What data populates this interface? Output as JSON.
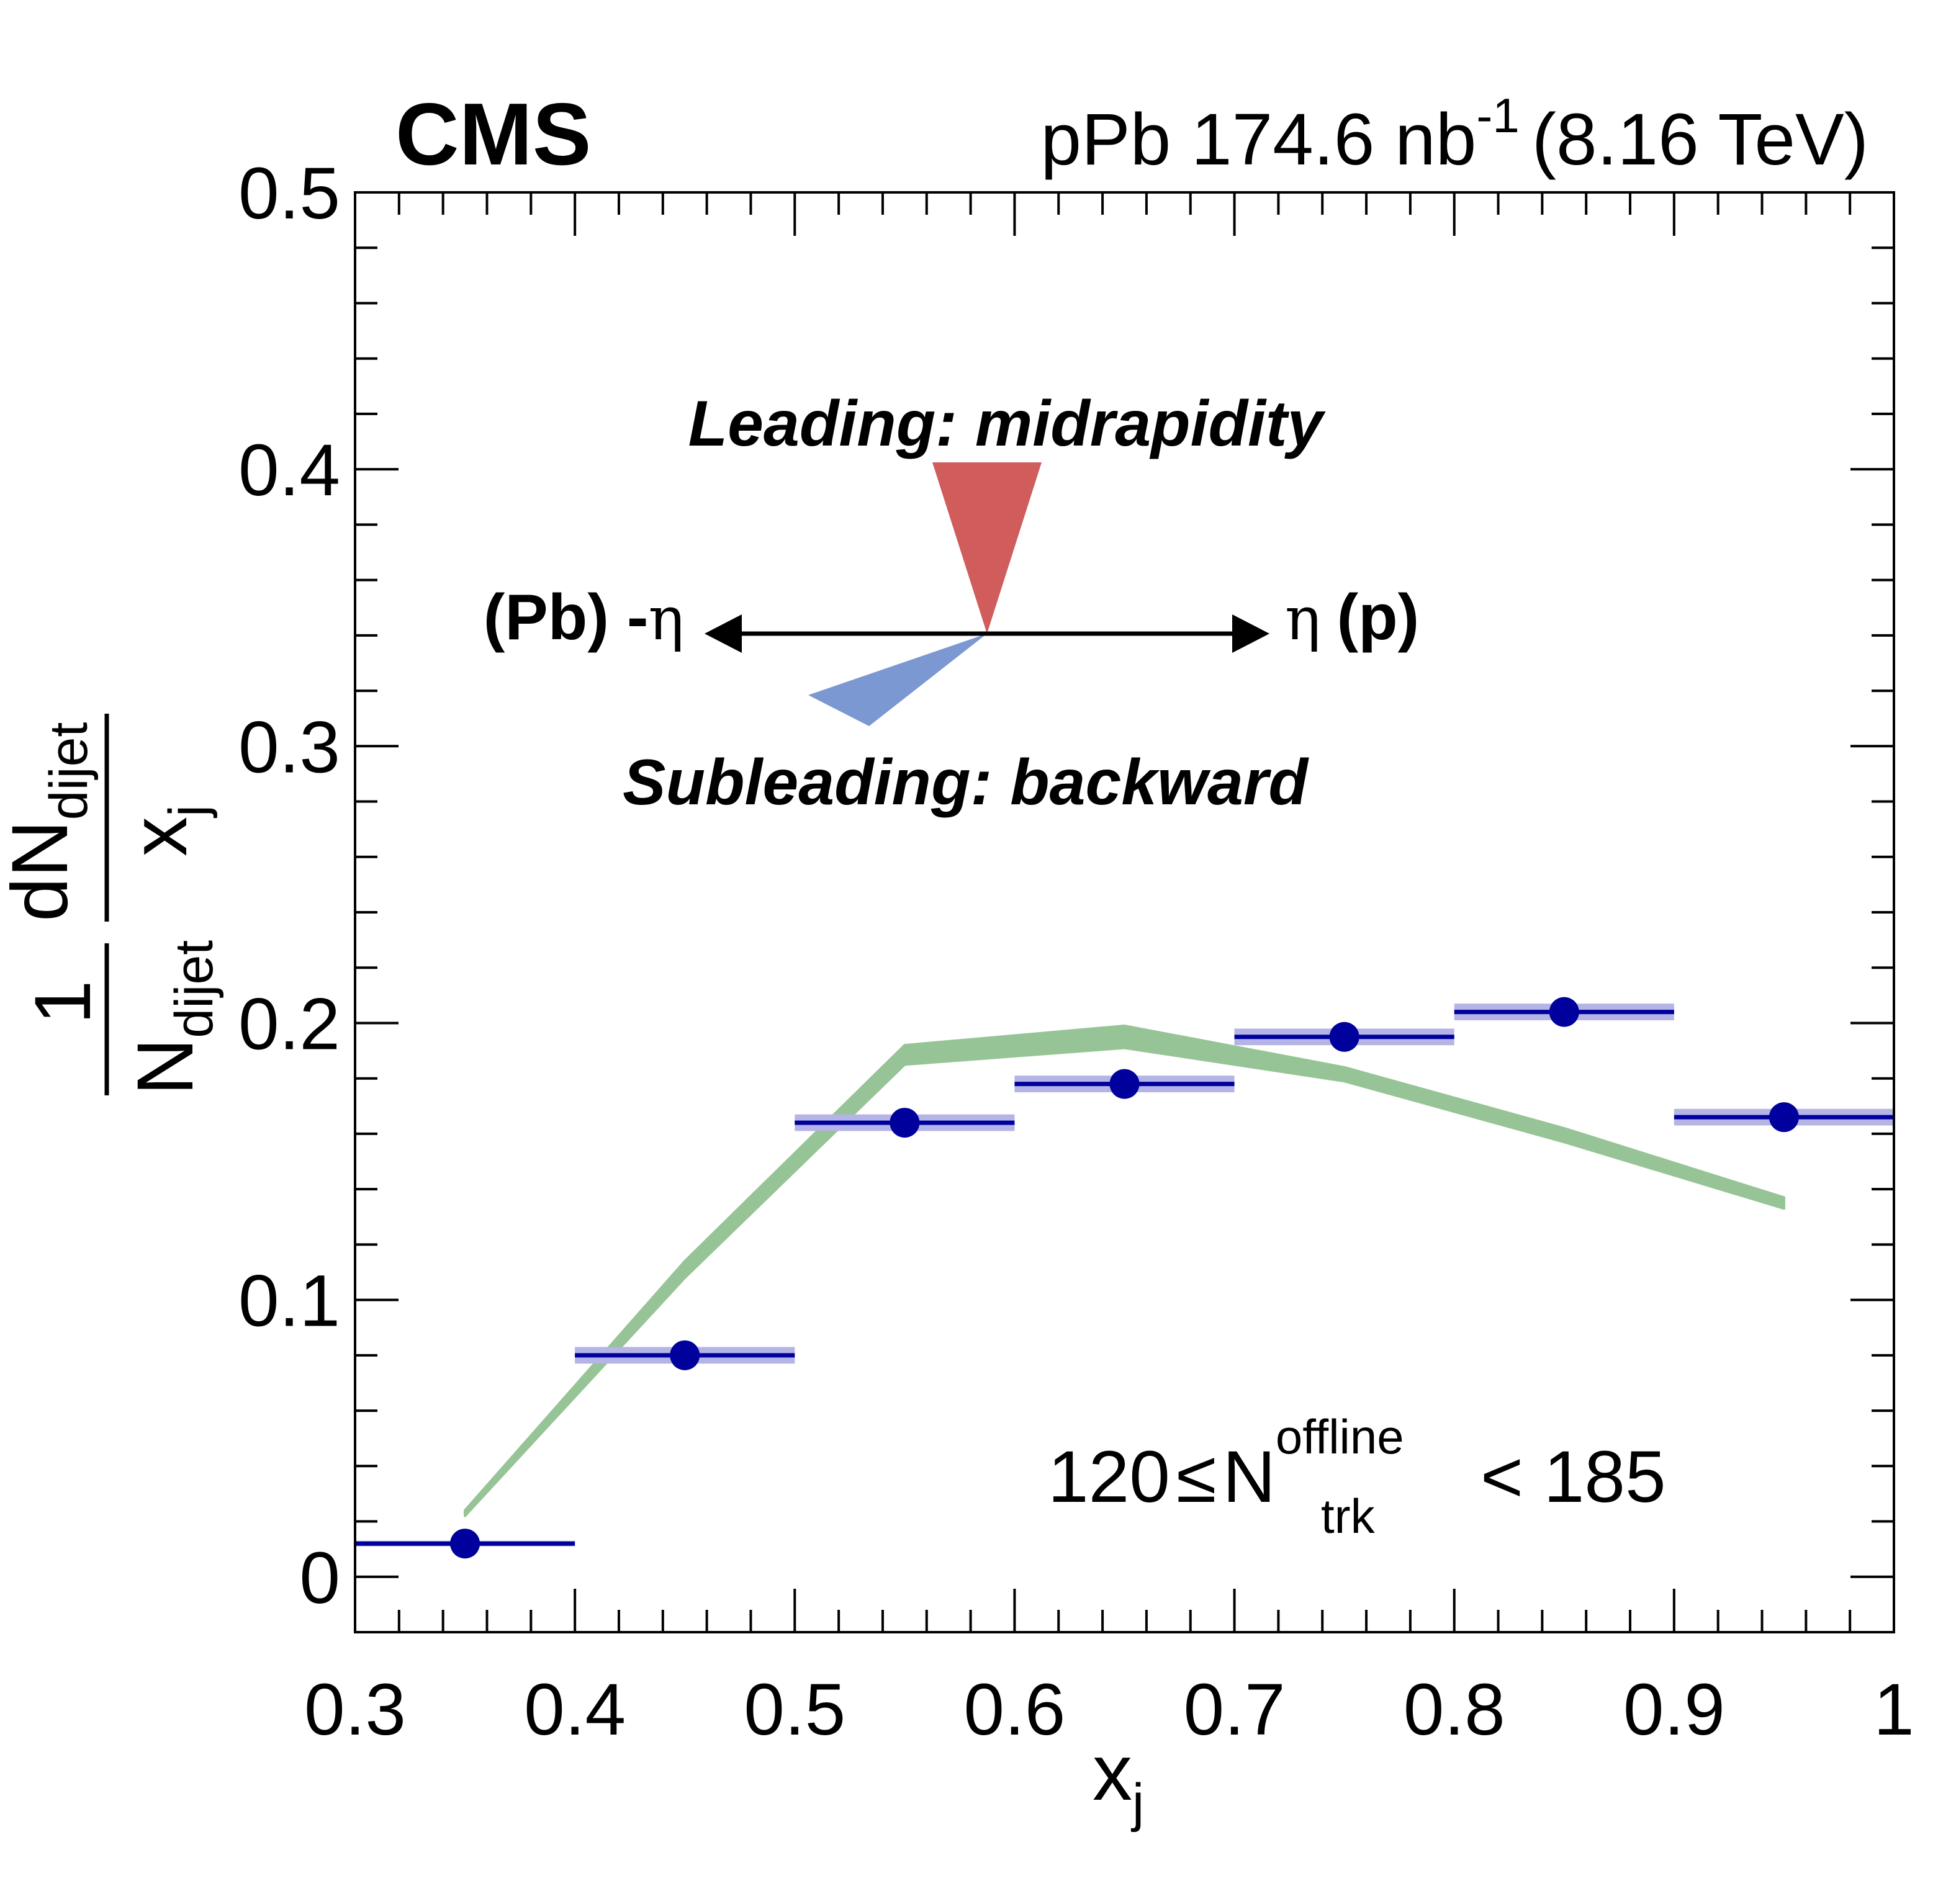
{
  "chart_data": {
    "type": "scatter",
    "experiment_label": "CMS",
    "lumi_label": {
      "prefix": "pPb 174.6 nb",
      "superscript": "-1",
      "suffix": "(8.16 TeV)"
    },
    "xlabel": {
      "main": "x",
      "sub": "j"
    },
    "ylabel": {
      "left_num": "1",
      "left_den_main": "N",
      "left_den_sub": "dijet",
      "right_num_main": "dN",
      "right_num_sub": "dijet",
      "right_den_main": "x",
      "right_den_sub": "j"
    },
    "xlim": [
      0.3,
      1.0
    ],
    "ylim": [
      -0.02,
      0.5
    ],
    "x_ticks": [
      {
        "v": 0.3,
        "label": "0.3"
      },
      {
        "v": 0.4,
        "label": "0.4"
      },
      {
        "v": 0.5,
        "label": "0.5"
      },
      {
        "v": 0.6,
        "label": "0.6"
      },
      {
        "v": 0.7,
        "label": "0.7"
      },
      {
        "v": 0.8,
        "label": "0.8"
      },
      {
        "v": 0.9,
        "label": "0.9"
      },
      {
        "v": 1.0,
        "label": "1"
      }
    ],
    "y_ticks": [
      {
        "v": 0.0,
        "label": "0"
      },
      {
        "v": 0.1,
        "label": "0.1"
      },
      {
        "v": 0.2,
        "label": "0.2"
      },
      {
        "v": 0.3,
        "label": "0.3"
      },
      {
        "v": 0.4,
        "label": "0.4"
      },
      {
        "v": 0.5,
        "label": "0.5"
      }
    ],
    "series": [
      {
        "kind": "data",
        "color": "#00009c",
        "band_color": "#b4b4e6",
        "points": [
          {
            "x": 0.35,
            "y": 0.012,
            "xlo": 0.3,
            "xhi": 0.4,
            "sys": 0.001
          },
          {
            "x": 0.45,
            "y": 0.08,
            "xlo": 0.4,
            "xhi": 0.5,
            "sys": 0.003
          },
          {
            "x": 0.55,
            "y": 0.164,
            "xlo": 0.5,
            "xhi": 0.6,
            "sys": 0.003
          },
          {
            "x": 0.65,
            "y": 0.178,
            "xlo": 0.6,
            "xhi": 0.7,
            "sys": 0.003
          },
          {
            "x": 0.75,
            "y": 0.195,
            "xlo": 0.7,
            "xhi": 0.8,
            "sys": 0.003
          },
          {
            "x": 0.85,
            "y": 0.204,
            "xlo": 0.8,
            "xhi": 0.9,
            "sys": 0.003
          },
          {
            "x": 0.95,
            "y": 0.166,
            "xlo": 0.9,
            "xhi": 1.0,
            "sys": 0.003
          }
        ]
      },
      {
        "kind": "band",
        "color": "#97c497",
        "points": [
          {
            "x": 0.35,
            "lo": 0.022,
            "hi": 0.024
          },
          {
            "x": 0.45,
            "lo": 0.108,
            "hi": 0.114
          },
          {
            "x": 0.55,
            "lo": 0.185,
            "hi": 0.192
          },
          {
            "x": 0.65,
            "lo": 0.191,
            "hi": 0.199
          },
          {
            "x": 0.75,
            "lo": 0.179,
            "hi": 0.184
          },
          {
            "x": 0.85,
            "lo": 0.157,
            "hi": 0.162
          },
          {
            "x": 0.95,
            "lo": 0.133,
            "hi": 0.137
          }
        ]
      }
    ],
    "annotations": {
      "leading": {
        "text": "Leading: midrapidity",
        "color": "#d05c5c"
      },
      "subleading": {
        "text": "Subleading: backward",
        "color": "#7b98d2"
      },
      "left_axis": {
        "main": "(Pb) -",
        "greek": "η"
      },
      "right_axis": {
        "greek": "η",
        "main": "(p)"
      },
      "multiplicity": {
        "lower": "120",
        "leq": "≤",
        "N": "N",
        "sup": "offline",
        "sub": "trk",
        "upper": "< 185"
      }
    }
  }
}
